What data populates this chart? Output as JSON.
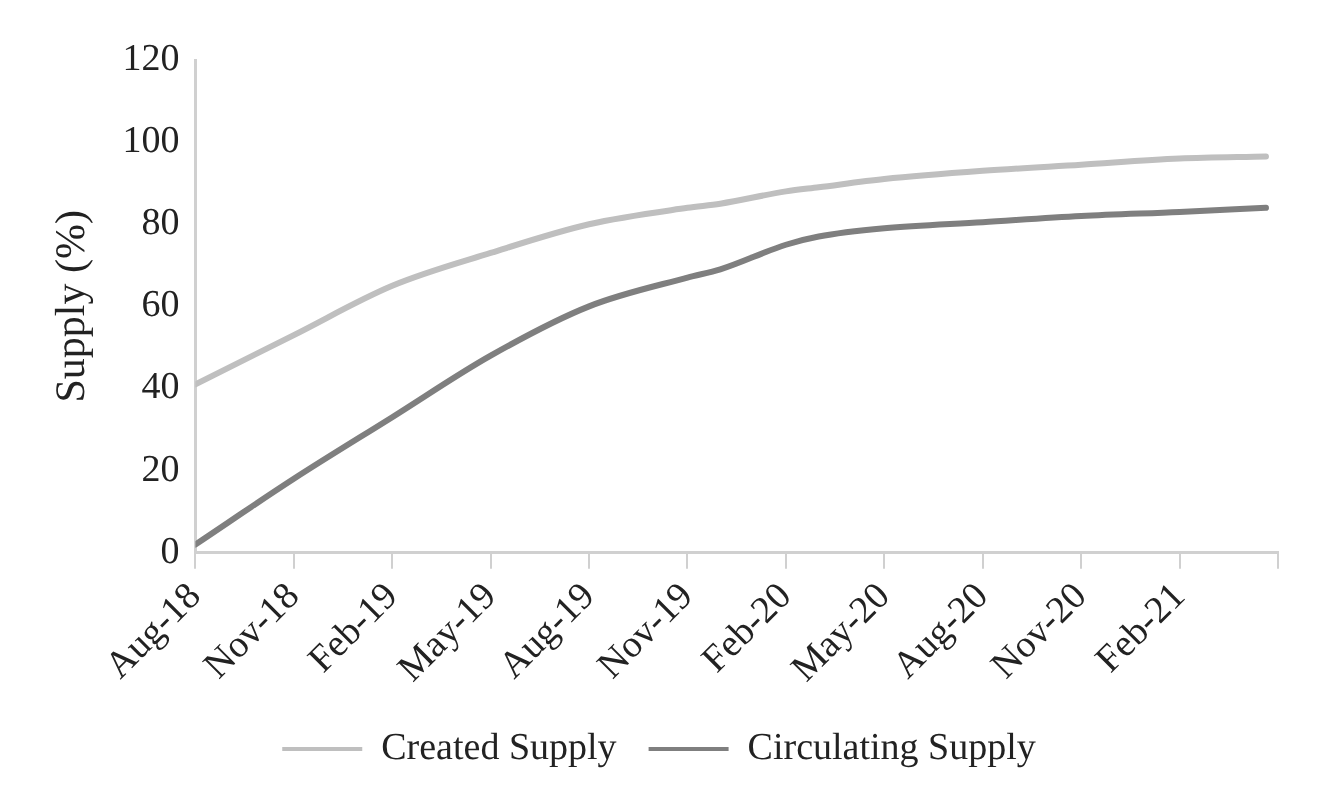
{
  "chart_data": {
    "type": "line",
    "ylabel": "Supply (%)",
    "xlim": [
      "2018-08",
      "2021-05"
    ],
    "xticks": [
      {
        "value": "2018-08",
        "label": "Aug-18"
      },
      {
        "value": "2018-11",
        "label": "Nov-18"
      },
      {
        "value": "2019-02",
        "label": "Feb-19"
      },
      {
        "value": "2019-05",
        "label": "May-19"
      },
      {
        "value": "2019-08",
        "label": "Aug-19"
      },
      {
        "value": "2019-11",
        "label": "Nov-19"
      },
      {
        "value": "2020-02",
        "label": "Feb-20"
      },
      {
        "value": "2020-05",
        "label": "May-20"
      },
      {
        "value": "2020-08",
        "label": "Aug-20"
      },
      {
        "value": "2020-11",
        "label": "Nov-20"
      },
      {
        "value": "2021-02",
        "label": "Feb-21"
      },
      {
        "value": "2021-05",
        "label": null
      }
    ],
    "ylim": [
      0,
      120
    ],
    "yticks": [
      0,
      20,
      40,
      60,
      80,
      100,
      120
    ],
    "x": [
      "2018-08",
      "2018-11",
      "2019-02",
      "2019-05",
      "2019-08",
      "2019-11",
      "2019-12",
      "2020-02",
      "2020-03",
      "2020-05",
      "2020-08",
      "2020-11",
      "2021-02",
      "2021-04-20"
    ],
    "series": [
      {
        "name": "Created Supply",
        "color": "#bfbfbf",
        "values": [
          41,
          53,
          65,
          73,
          80,
          84,
          85,
          88,
          89,
          91,
          93,
          94.5,
          96,
          96.5
        ]
      },
      {
        "name": "Circulating Supply",
        "color": "#7f7f7f",
        "values": [
          2,
          18,
          33,
          48,
          60,
          67,
          69,
          75,
          77,
          79,
          80.5,
          82,
          83,
          84
        ]
      }
    ],
    "legend": "bottom",
    "grid": false,
    "marker": "none",
    "line_style": "solid"
  }
}
